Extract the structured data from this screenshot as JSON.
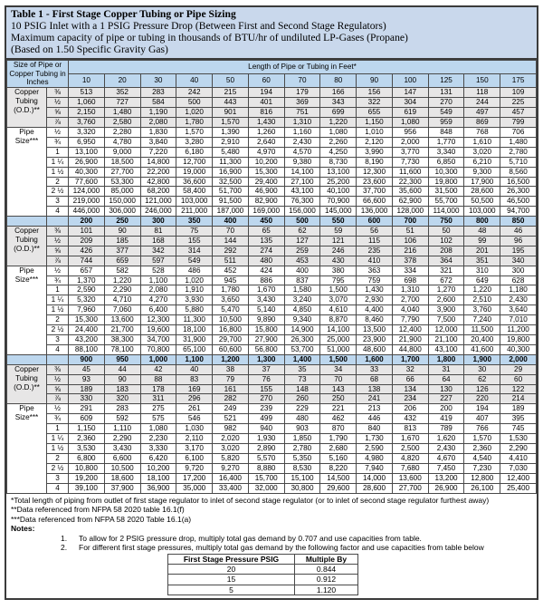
{
  "title": "Table 1 - First Stage Copper Tubing or Pipe Sizing",
  "subtitle_lines": [
    "10 PSIG Inlet with a 1 PSIG Pressure Drop (Between First and Second Stage Regulators)",
    "Maximum capacity of pipe or tubing in thousands of BTU/hr of undiluted LP-Gases (Propane)",
    "(Based on 1.50 Specific Gravity Gas)"
  ],
  "size_header": "Size of Pipe or Copper Tubing in Inches",
  "length_header": "Length of Pipe or Tubing in Feet*",
  "labels": {
    "copper": "Copper Tubing (O.D.)**",
    "pipe": "Pipe Size***"
  },
  "sections": [
    {
      "lengths": [
        "10",
        "20",
        "30",
        "40",
        "50",
        "60",
        "70",
        "80",
        "90",
        "100",
        "125",
        "150",
        "175"
      ],
      "copper": [
        {
          "size": "⅜",
          "values": [
            "513",
            "352",
            "283",
            "242",
            "215",
            "194",
            "179",
            "166",
            "156",
            "147",
            "131",
            "118",
            "109"
          ]
        },
        {
          "size": "½",
          "values": [
            "1,060",
            "727",
            "584",
            "500",
            "443",
            "401",
            "369",
            "343",
            "322",
            "304",
            "270",
            "244",
            "225"
          ]
        },
        {
          "size": "⅝",
          "values": [
            "2,150",
            "1,480",
            "1,190",
            "1,020",
            "901",
            "816",
            "751",
            "699",
            "655",
            "619",
            "549",
            "497",
            "457"
          ]
        },
        {
          "size": "⅞",
          "values": [
            "3,760",
            "2,580",
            "2,080",
            "1,780",
            "1,570",
            "1,430",
            "1,310",
            "1,220",
            "1,150",
            "1,080",
            "959",
            "869",
            "799"
          ]
        }
      ],
      "pipe": [
        {
          "size": "½",
          "values": [
            "3,320",
            "2,280",
            "1,830",
            "1,570",
            "1,390",
            "1,260",
            "1,160",
            "1,080",
            "1,010",
            "956",
            "848",
            "768",
            "706"
          ]
        },
        {
          "size": "¾",
          "values": [
            "6,950",
            "4,780",
            "3,840",
            "3,280",
            "2,910",
            "2,640",
            "2,430",
            "2,260",
            "2,120",
            "2,000",
            "1,770",
            "1,610",
            "1,480"
          ]
        },
        {
          "size": "1",
          "values": [
            "13,100",
            "9,000",
            "7,220",
            "6,180",
            "5,480",
            "4,970",
            "4,570",
            "4,250",
            "3,990",
            "3,770",
            "3,340",
            "3,020",
            "2,780"
          ]
        },
        {
          "size": "1 ¼",
          "values": [
            "26,900",
            "18,500",
            "14,800",
            "12,700",
            "11,300",
            "10,200",
            "9,380",
            "8,730",
            "8,190",
            "7,730",
            "6,850",
            "6,210",
            "5,710"
          ]
        },
        {
          "size": "1 ½",
          "values": [
            "40,300",
            "27,700",
            "22,200",
            "19,000",
            "16,900",
            "15,300",
            "14,100",
            "13,100",
            "12,300",
            "11,600",
            "10,300",
            "9,300",
            "8,560"
          ]
        },
        {
          "size": "2",
          "values": [
            "77,600",
            "53,300",
            "42,800",
            "36,600",
            "32,500",
            "29,400",
            "27,100",
            "25,200",
            "23,600",
            "22,300",
            "19,800",
            "17,900",
            "16,500"
          ]
        },
        {
          "size": "2 ½",
          "values": [
            "124,000",
            "85,000",
            "68,200",
            "58,400",
            "51,700",
            "46,900",
            "43,100",
            "40,100",
            "37,700",
            "35,600",
            "31,500",
            "28,600",
            "26,300"
          ]
        },
        {
          "size": "3",
          "values": [
            "219,000",
            "150,000",
            "121,000",
            "103,000",
            "91,500",
            "82,900",
            "76,300",
            "70,900",
            "66,600",
            "62,900",
            "55,700",
            "50,500",
            "46,500"
          ]
        },
        {
          "size": "4",
          "values": [
            "446,000",
            "306,000",
            "246,000",
            "211,000",
            "187,000",
            "169,000",
            "156,000",
            "145,000",
            "136,000",
            "128,000",
            "114,000",
            "103,000",
            "94,700"
          ]
        }
      ]
    },
    {
      "lengths": [
        "200",
        "250",
        "300",
        "350",
        "400",
        "450",
        "500",
        "550",
        "600",
        "700",
        "750",
        "800",
        "850"
      ],
      "copper": [
        {
          "size": "⅜",
          "values": [
            "101",
            "90",
            "81",
            "75",
            "70",
            "65",
            "62",
            "59",
            "56",
            "51",
            "50",
            "48",
            "46"
          ]
        },
        {
          "size": "½",
          "values": [
            "209",
            "185",
            "168",
            "155",
            "144",
            "135",
            "127",
            "121",
            "115",
            "106",
            "102",
            "99",
            "96"
          ]
        },
        {
          "size": "⅝",
          "values": [
            "426",
            "377",
            "342",
            "314",
            "292",
            "274",
            "259",
            "246",
            "235",
            "216",
            "208",
            "201",
            "195"
          ]
        },
        {
          "size": "⅞",
          "values": [
            "744",
            "659",
            "597",
            "549",
            "511",
            "480",
            "453",
            "430",
            "410",
            "378",
            "364",
            "351",
            "340"
          ]
        }
      ],
      "pipe": [
        {
          "size": "½",
          "values": [
            "657",
            "582",
            "528",
            "486",
            "452",
            "424",
            "400",
            "380",
            "363",
            "334",
            "321",
            "310",
            "300"
          ]
        },
        {
          "size": "¾",
          "values": [
            "1,370",
            "1,220",
            "1,100",
            "1,020",
            "945",
            "886",
            "837",
            "795",
            "759",
            "698",
            "672",
            "649",
            "628"
          ]
        },
        {
          "size": "1",
          "values": [
            "2,590",
            "2,290",
            "2,080",
            "1,910",
            "1,780",
            "1,670",
            "1,580",
            "1,500",
            "1,430",
            "1,310",
            "1,270",
            "1,220",
            "1,180"
          ]
        },
        {
          "size": "1 ¼",
          "values": [
            "5,320",
            "4,710",
            "4,270",
            "3,930",
            "3,650",
            "3,430",
            "3,240",
            "3,070",
            "2,930",
            "2,700",
            "2,600",
            "2,510",
            "2,430"
          ]
        },
        {
          "size": "1 ½",
          "values": [
            "7,960",
            "7,060",
            "6,400",
            "5,880",
            "5,470",
            "5,140",
            "4,850",
            "4,610",
            "4,400",
            "4,040",
            "3,900",
            "3,760",
            "3,640"
          ]
        },
        {
          "size": "2",
          "values": [
            "15,300",
            "13,600",
            "12,300",
            "11,300",
            "10,500",
            "9,890",
            "9,340",
            "8,870",
            "8,460",
            "7,790",
            "7,500",
            "7,240",
            "7,010"
          ]
        },
        {
          "size": "2 ½",
          "values": [
            "24,400",
            "21,700",
            "19,600",
            "18,100",
            "16,800",
            "15,800",
            "14,900",
            "14,100",
            "13,500",
            "12,400",
            "12,000",
            "11,500",
            "11,200"
          ]
        },
        {
          "size": "3",
          "values": [
            "43,200",
            "38,300",
            "34,700",
            "31,900",
            "29,700",
            "27,900",
            "26,300",
            "25,000",
            "23,900",
            "21,900",
            "21,100",
            "20,400",
            "19,800"
          ]
        },
        {
          "size": "4",
          "values": [
            "88,100",
            "78,100",
            "70,800",
            "65,100",
            "60,600",
            "56,800",
            "53,700",
            "51,000",
            "48,600",
            "44,800",
            "43,100",
            "41,600",
            "40,300"
          ]
        }
      ]
    },
    {
      "lengths": [
        "900",
        "950",
        "1,000",
        "1,100",
        "1,200",
        "1,300",
        "1,400",
        "1,500",
        "1,600",
        "1,700",
        "1,800",
        "1,900",
        "2,000"
      ],
      "copper": [
        {
          "size": "⅜",
          "values": [
            "45",
            "44",
            "42",
            "40",
            "38",
            "37",
            "35",
            "34",
            "33",
            "32",
            "31",
            "30",
            "29"
          ]
        },
        {
          "size": "½",
          "values": [
            "93",
            "90",
            "88",
            "83",
            "79",
            "76",
            "73",
            "70",
            "68",
            "66",
            "64",
            "62",
            "60"
          ]
        },
        {
          "size": "⅝",
          "values": [
            "189",
            "183",
            "178",
            "169",
            "161",
            "155",
            "148",
            "143",
            "138",
            "134",
            "130",
            "126",
            "122"
          ]
        },
        {
          "size": "⅞",
          "values": [
            "330",
            "320",
            "311",
            "296",
            "282",
            "270",
            "260",
            "250",
            "241",
            "234",
            "227",
            "220",
            "214"
          ]
        }
      ],
      "pipe": [
        {
          "size": "½",
          "values": [
            "291",
            "283",
            "275",
            "261",
            "249",
            "239",
            "229",
            "221",
            "213",
            "206",
            "200",
            "194",
            "189"
          ]
        },
        {
          "size": "¾",
          "values": [
            "609",
            "592",
            "575",
            "546",
            "521",
            "499",
            "480",
            "462",
            "446",
            "432",
            "419",
            "407",
            "395"
          ]
        },
        {
          "size": "1",
          "values": [
            "1,150",
            "1,110",
            "1,080",
            "1,030",
            "982",
            "940",
            "903",
            "870",
            "840",
            "813",
            "789",
            "766",
            "745"
          ]
        },
        {
          "size": "1 ¼",
          "values": [
            "2,360",
            "2,290",
            "2,230",
            "2,110",
            "2,020",
            "1,930",
            "1,850",
            "1,790",
            "1,730",
            "1,670",
            "1,620",
            "1,570",
            "1,530"
          ]
        },
        {
          "size": "1 ½",
          "values": [
            "3,530",
            "3,430",
            "3,330",
            "3,170",
            "3,020",
            "2,890",
            "2,780",
            "2,680",
            "2,590",
            "2,500",
            "2,430",
            "2,360",
            "2,290"
          ]
        },
        {
          "size": "2",
          "values": [
            "6,800",
            "6,600",
            "6,420",
            "6,100",
            "5,820",
            "5,570",
            "5,350",
            "5,160",
            "4,980",
            "4,820",
            "4,670",
            "4,540",
            "4,410"
          ]
        },
        {
          "size": "2 ½",
          "values": [
            "10,800",
            "10,500",
            "10,200",
            "9,720",
            "9,270",
            "8,880",
            "8,530",
            "8,220",
            "7,940",
            "7,680",
            "7,450",
            "7,230",
            "7,030"
          ]
        },
        {
          "size": "3",
          "values": [
            "19,200",
            "18,600",
            "18,100",
            "17,200",
            "16,400",
            "15,700",
            "15,100",
            "14,500",
            "14,000",
            "13,600",
            "13,200",
            "12,800",
            "12,400"
          ]
        },
        {
          "size": "4",
          "values": [
            "39,100",
            "37,900",
            "36,900",
            "35,000",
            "33,400",
            "32,000",
            "30,800",
            "29,600",
            "28,600",
            "27,700",
            "26,900",
            "26,100",
            "25,400"
          ]
        }
      ]
    }
  ],
  "footnotes": [
    "*Total length of piping from outlet of first stage regulator to inlet of second stage regulator (or to inlet of second stage regulator furthest away)",
    "**Data referenced from NFPA 58 2020 table 16.1(f)",
    "***Data referenced from NFPA 58 2020 Table 16.1(a)"
  ],
  "notes_label": "Notes:",
  "notes": [
    "To allow for 2 PSIG pressure drop, multiply total gas demand by 0.707 and use capacities from table.",
    "For different first stage pressures, multiply total gas demand by the following factor and use capacities from table below"
  ],
  "pressure_table": {
    "headers": [
      "First Stage Pressure  PSIG",
      "Multiple By"
    ],
    "rows": [
      [
        "20",
        "0.844"
      ],
      [
        "15",
        "0.912"
      ],
      [
        "5",
        "1.120"
      ]
    ]
  },
  "colors": {
    "header_blue": "#bdd7ee",
    "title_blue": "#c9d8ec",
    "copper_gray": "#e7e6e6",
    "grid_border": "#4a4a4a"
  }
}
